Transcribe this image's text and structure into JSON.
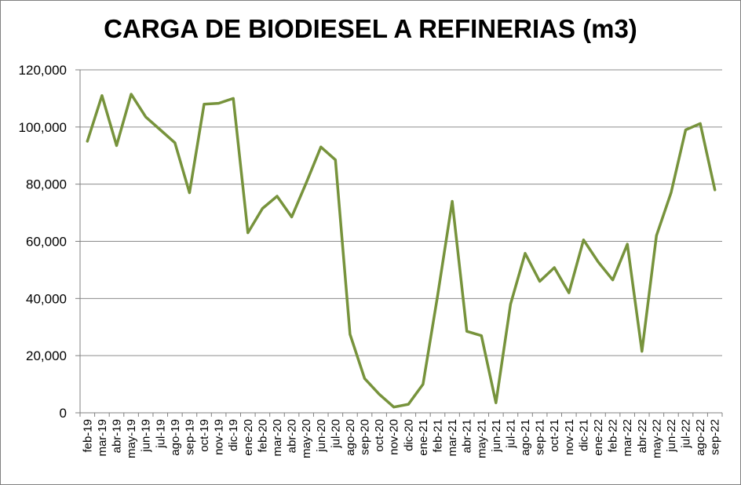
{
  "chart_data": {
    "type": "line",
    "title": "CARGA DE BIODIESEL A REFINERIAS (m3)",
    "ylim": [
      0,
      120000
    ],
    "yticks": [
      "0",
      "20,000",
      "40,000",
      "60,000",
      "80,000",
      "100,000",
      "120,000"
    ],
    "ytick_values": [
      0,
      20000,
      40000,
      60000,
      80000,
      100000,
      120000
    ],
    "grid": true,
    "legend": false,
    "colors": {
      "series": "#77933C",
      "grid": "#8C8C8C",
      "axis": "#808080"
    },
    "categories": [
      "feb-19",
      "mar-19",
      "abr-19",
      "may-19",
      "jun-19",
      "jul-19",
      "ago-19",
      "sep-19",
      "oct-19",
      "nov-19",
      "dic-19",
      "ene-20",
      "feb-20",
      "mar-20",
      "abr-20",
      "may-20",
      "jun-20",
      "jul-20",
      "ago-20",
      "sep-20",
      "oct-20",
      "nov-20",
      "dic-20",
      "ene-21",
      "feb-21",
      "mar-21",
      "abr-21",
      "may-21",
      "jun-21",
      "jul-21",
      "ago-21",
      "sep-21",
      "oct-21",
      "nov-21",
      "dic-21",
      "ene-22",
      "feb-22",
      "mar-22",
      "abr-22",
      "may-22",
      "jun-22",
      "jul-22",
      "ago-22",
      "sep-22"
    ],
    "series": [
      {
        "values": [
          95000,
          111000,
          93500,
          111500,
          103500,
          99000,
          94500,
          77000,
          108000,
          108300,
          110000,
          63000,
          71500,
          75800,
          68500,
          80500,
          93000,
          88500,
          27500,
          12000,
          6500,
          2000,
          3000,
          10000,
          41000,
          74000,
          28500,
          27000,
          3500,
          38000,
          55800,
          46000,
          50800,
          42000,
          60500,
          52800,
          46500,
          59000,
          21500,
          62000,
          77000,
          99000,
          101200,
          78000
        ]
      }
    ]
  }
}
